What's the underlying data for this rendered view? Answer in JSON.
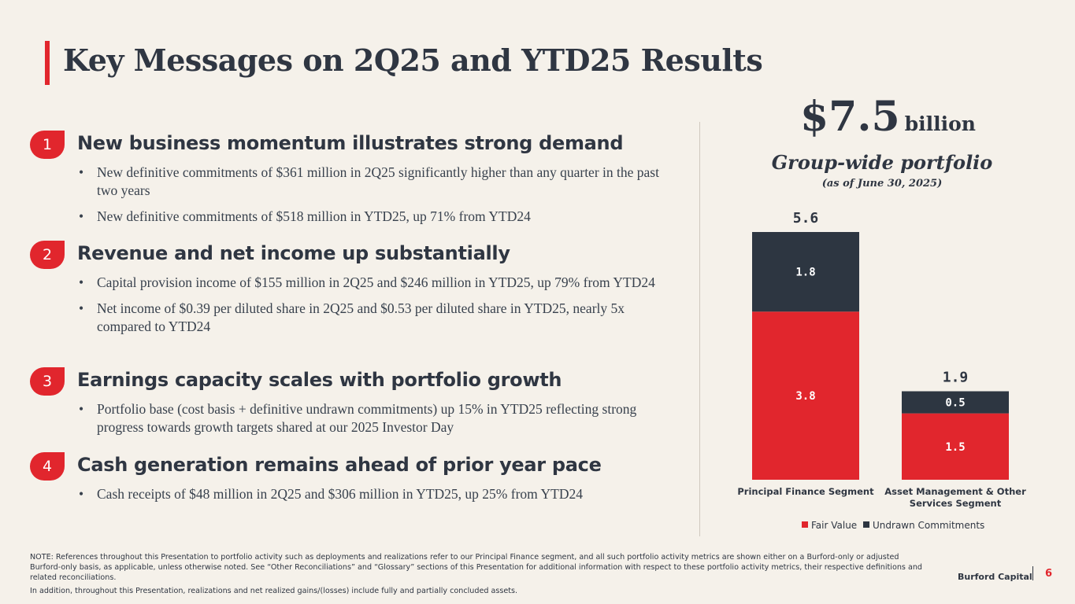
{
  "title": "Key Messages on 2Q25 and YTD25 Results",
  "sections": [
    {
      "number": "1",
      "heading": "New business momentum illustrates strong demand",
      "bullets": [
        "New definitive commitments of $361 million in 2Q25 significantly higher than any quarter in the past two years",
        "New definitive commitments of $518 million in YTD25, up 71% from YTD24"
      ]
    },
    {
      "number": "2",
      "heading": "Revenue and net income up substantially",
      "bullets": [
        "Capital provision income of $155 million in 2Q25 and $246 million in YTD25, up 79% from YTD24",
        "Net income of $0.39 per diluted share in 2Q25 and $0.53 per diluted share in YTD25, nearly 5x compared to YTD24"
      ]
    },
    {
      "number": "3",
      "heading": "Earnings capacity scales with portfolio growth",
      "bullets": [
        "Portfolio base (cost basis + definitive undrawn commitments) up 15% in YTD25 reflecting strong progress towards growth targets shared at our 2025 Investor Day"
      ]
    },
    {
      "number": "4",
      "heading": "Cash generation remains ahead of prior year pace",
      "bullets": [
        "Cash receipts of $48 million in 2Q25 and $306 million in YTD25, up 25% from YTD24"
      ]
    }
  ],
  "kpi": {
    "value": "$7.5",
    "unit": "billion",
    "subtitle": "Group-wide portfolio",
    "date": "(as of June 30, 2025)"
  },
  "chart_data": {
    "type": "bar",
    "stacked": true,
    "categories": [
      "Principal Finance Segment",
      "Asset Management & Other Services Segment"
    ],
    "category_lines": [
      [
        "Principal Finance Segment"
      ],
      [
        "Asset Management & Other",
        "Services Segment"
      ]
    ],
    "series": [
      {
        "name": "Fair Value",
        "values": [
          3.8,
          1.5
        ],
        "labels": [
          "3.8",
          "1.5"
        ],
        "color": "#e1262d"
      },
      {
        "name": "Undrawn Commitments",
        "values": [
          1.8,
          0.5
        ],
        "labels": [
          "1.8",
          "0.5"
        ],
        "color": "#2d3641"
      }
    ],
    "totals": [
      5.6,
      1.9
    ],
    "total_labels": [
      "5.6",
      "1.9"
    ],
    "ylim": [
      0,
      5.6
    ],
    "legend": "bottom",
    "grid": false
  },
  "notes": [
    "NOTE: References throughout this Presentation to portfolio activity such as deployments and realizations refer to our Principal Finance segment, and all such portfolio activity metrics are shown either on a Burford-only or adjusted Burford-only basis, as applicable, unless otherwise noted. See “Other Reconciliations” and “Glossary” sections of this Presentation for additional information with respect to these portfolio activity metrics, their respective definitions and related reconciliations.",
    "In addition, throughout this Presentation, realizations and net realized gains/(losses) include fully and partially concluded assets."
  ],
  "footer": {
    "brand": "Burford Capital",
    "page": "6"
  },
  "colors": {
    "accent": "#e1262d",
    "dark": "#2d3641",
    "background": "#f5f1ea"
  }
}
